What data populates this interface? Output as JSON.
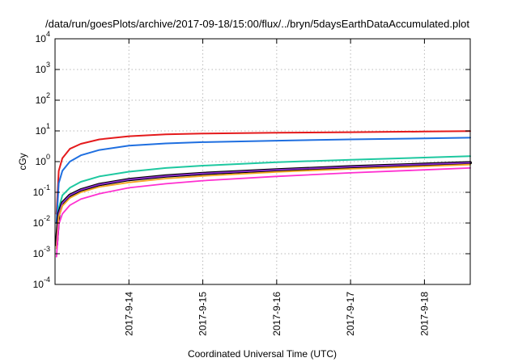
{
  "chart_data": {
    "type": "line",
    "title": "/data/run/goesPlots/archive/2017-09-18/15:00/flux/../bryn/5daysEarthDataAccumulated.plot",
    "xlabel": "Coordinated Universal Time (UTC)",
    "ylabel": "cGy",
    "yscale": "log",
    "ylim_exponents": [
      -4,
      4
    ],
    "y_ticks": [
      {
        "base": "10",
        "exp": "-4"
      },
      {
        "base": "10",
        "exp": "-3"
      },
      {
        "base": "10",
        "exp": "-2"
      },
      {
        "base": "10",
        "exp": "-1"
      },
      {
        "base": "10",
        "exp": "0"
      },
      {
        "base": "10",
        "exp": "1"
      },
      {
        "base": "10",
        "exp": "2"
      },
      {
        "base": "10",
        "exp": "3"
      },
      {
        "base": "10",
        "exp": "4"
      }
    ],
    "xlim_days": [
      0,
      5.62
    ],
    "x_ticks": [
      {
        "label": "2017-9-14",
        "day": 1
      },
      {
        "label": "2017-9-15",
        "day": 2
      },
      {
        "label": "2017-9-16",
        "day": 3
      },
      {
        "label": "2017-9-17",
        "day": 4
      },
      {
        "label": "2017-9-18",
        "day": 5
      }
    ],
    "grid": true,
    "series": [
      {
        "color": "#e41a1c",
        "width": 2.0,
        "points": [
          [
            0.02,
            0.02
          ],
          [
            0.05,
            0.5
          ],
          [
            0.1,
            1.3
          ],
          [
            0.2,
            2.6
          ],
          [
            0.35,
            3.8
          ],
          [
            0.6,
            5.3
          ],
          [
            1,
            6.7
          ],
          [
            1.5,
            7.7
          ],
          [
            2,
            8.2
          ],
          [
            3,
            8.7
          ],
          [
            4,
            9.1
          ],
          [
            5,
            9.5
          ],
          [
            5.62,
            9.8
          ]
        ]
      },
      {
        "color": "#1f6fe0",
        "width": 2.0,
        "points": [
          [
            0.02,
            0.01
          ],
          [
            0.05,
            0.2
          ],
          [
            0.1,
            0.5
          ],
          [
            0.2,
            1.0
          ],
          [
            0.35,
            1.6
          ],
          [
            0.6,
            2.4
          ],
          [
            1,
            3.3
          ],
          [
            1.5,
            3.9
          ],
          [
            2,
            4.3
          ],
          [
            3,
            4.8
          ],
          [
            4,
            5.3
          ],
          [
            5,
            5.7
          ],
          [
            5.62,
            6.0
          ]
        ]
      },
      {
        "color": "#1ec8a0",
        "width": 2.0,
        "points": [
          [
            0.02,
            0.003
          ],
          [
            0.05,
            0.03
          ],
          [
            0.1,
            0.08
          ],
          [
            0.2,
            0.14
          ],
          [
            0.35,
            0.22
          ],
          [
            0.6,
            0.33
          ],
          [
            1,
            0.47
          ],
          [
            1.5,
            0.62
          ],
          [
            2,
            0.74
          ],
          [
            3,
            0.95
          ],
          [
            4,
            1.15
          ],
          [
            5,
            1.35
          ],
          [
            5.62,
            1.5
          ]
        ]
      },
      {
        "color": "#000000",
        "width": 4.0,
        "points": [
          [
            0.02,
            0.002
          ],
          [
            0.05,
            0.02
          ],
          [
            0.1,
            0.045
          ],
          [
            0.2,
            0.08
          ],
          [
            0.35,
            0.12
          ],
          [
            0.6,
            0.18
          ],
          [
            1,
            0.26
          ],
          [
            1.5,
            0.34
          ],
          [
            2,
            0.41
          ],
          [
            3,
            0.54
          ],
          [
            4,
            0.68
          ],
          [
            5,
            0.82
          ],
          [
            5.62,
            0.92
          ]
        ]
      },
      {
        "color": "#8c2fd0",
        "width": 1.8,
        "points": [
          [
            0.02,
            0.002
          ],
          [
            0.05,
            0.02
          ],
          [
            0.1,
            0.045
          ],
          [
            0.2,
            0.08
          ],
          [
            0.35,
            0.12
          ],
          [
            0.6,
            0.18
          ],
          [
            1,
            0.26
          ],
          [
            1.5,
            0.34
          ],
          [
            2,
            0.41
          ],
          [
            3,
            0.54
          ],
          [
            4,
            0.68
          ],
          [
            5,
            0.82
          ],
          [
            5.62,
            0.92
          ]
        ]
      },
      {
        "color": "#f5a623",
        "width": 1.8,
        "points": [
          [
            0.02,
            0.0015
          ],
          [
            0.05,
            0.016
          ],
          [
            0.1,
            0.036
          ],
          [
            0.2,
            0.065
          ],
          [
            0.35,
            0.1
          ],
          [
            0.6,
            0.15
          ],
          [
            1,
            0.21
          ],
          [
            1.5,
            0.28
          ],
          [
            2,
            0.34
          ],
          [
            3,
            0.46
          ],
          [
            4,
            0.58
          ],
          [
            5,
            0.7
          ],
          [
            5.62,
            0.8
          ]
        ]
      },
      {
        "color": "#ff2fd0",
        "width": 1.8,
        "points": [
          [
            0.02,
            0.0008
          ],
          [
            0.05,
            0.009
          ],
          [
            0.1,
            0.02
          ],
          [
            0.2,
            0.038
          ],
          [
            0.35,
            0.06
          ],
          [
            0.6,
            0.09
          ],
          [
            1,
            0.14
          ],
          [
            1.5,
            0.19
          ],
          [
            2,
            0.24
          ],
          [
            3,
            0.33
          ],
          [
            4,
            0.43
          ],
          [
            5,
            0.54
          ],
          [
            5.62,
            0.62
          ]
        ]
      }
    ]
  }
}
